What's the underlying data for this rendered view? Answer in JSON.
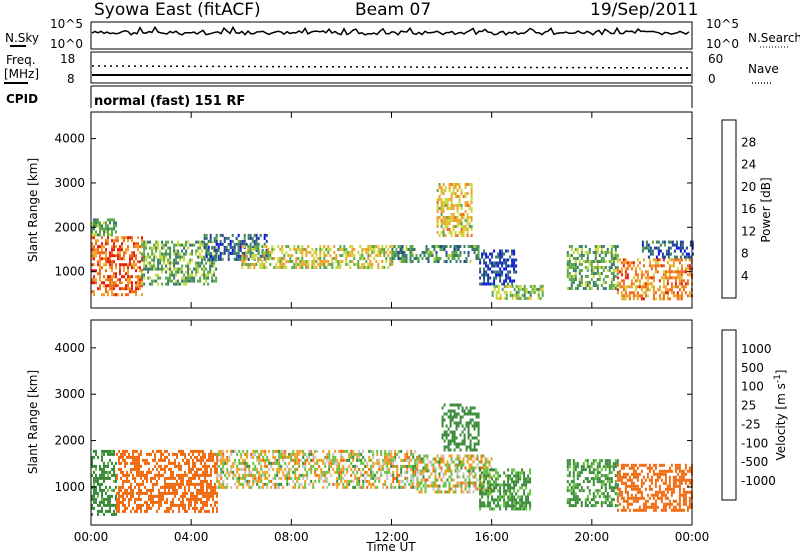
{
  "header": {
    "station": "Syowa East (fitACF)",
    "beam": "Beam 07",
    "date": "19/Sep/2011"
  },
  "noise_panel": {
    "left_label": "N.Sky",
    "right_label": "N.Search",
    "left_ticks": [
      "10^5",
      "10^0"
    ],
    "right_ticks": [
      "10^5",
      "10^0"
    ]
  },
  "freq_panel": {
    "left_label_line1": "Freq.",
    "left_label_line2": "[MHz]",
    "left_ticks": [
      "18",
      "8"
    ],
    "right_label": "Nave",
    "right_ticks": [
      "60",
      "0"
    ]
  },
  "cpid_panel": {
    "label": "CPID",
    "mode": "normal (fast) 151 RF"
  },
  "colors": {
    "power_scale": [
      "#0a14e6",
      "#22409a",
      "#3a7a6a",
      "#5aa84a",
      "#c8d83c",
      "#f2a028",
      "#f06a18",
      "#e62010"
    ],
    "velocity_scale": [
      "#2838a8",
      "#2a6a60",
      "#3a8a3a",
      "#68c040",
      "#c4c4bc",
      "#f0a020",
      "#f06a10",
      "#e83010",
      "#ff0808"
    ]
  },
  "chart_data": [
    {
      "type": "heatmap",
      "title": "",
      "xlabel": "",
      "ylabel": "Slant Range [km]",
      "x_ticks": [
        "00:00",
        "04:00",
        "08:00",
        "12:00",
        "16:00",
        "20:00",
        "00:00"
      ],
      "y_ticks": [
        "1000",
        "2000",
        "3000",
        "4000"
      ],
      "ylim": [
        180,
        4600
      ],
      "xlim_hours": [
        0,
        24
      ],
      "colorbar": {
        "label": "Power [dB]",
        "ticks": [
          "4",
          "8",
          "12",
          "16",
          "20",
          "24",
          "28"
        ],
        "range": [
          0,
          32
        ]
      },
      "regions": [
        {
          "t0": 0.0,
          "t1": 2.0,
          "r0": 500,
          "r1": 1800,
          "value": 26
        },
        {
          "t0": 0.0,
          "t1": 1.0,
          "r0": 1800,
          "r1": 2200,
          "value": 14
        },
        {
          "t0": 2.0,
          "t1": 5.0,
          "r0": 700,
          "r1": 1700,
          "value": 14
        },
        {
          "t0": 4.5,
          "t1": 7.0,
          "r0": 1300,
          "r1": 1850,
          "value": 8
        },
        {
          "t0": 6.0,
          "t1": 12.0,
          "r0": 1100,
          "r1": 1600,
          "value": 18
        },
        {
          "t0": 12.0,
          "t1": 15.5,
          "r0": 1200,
          "r1": 1600,
          "value": 12
        },
        {
          "t0": 13.8,
          "t1": 15.2,
          "r0": 1800,
          "r1": 3000,
          "value": 20
        },
        {
          "t0": 15.5,
          "t1": 17.0,
          "r0": 700,
          "r1": 1500,
          "value": 6
        },
        {
          "t0": 16.0,
          "t1": 18.0,
          "r0": 400,
          "r1": 700,
          "value": 16
        },
        {
          "t0": 19.0,
          "t1": 21.0,
          "r0": 600,
          "r1": 1600,
          "value": 14
        },
        {
          "t0": 21.0,
          "t1": 24.0,
          "r0": 400,
          "r1": 1300,
          "value": 24
        },
        {
          "t0": 22.0,
          "t1": 24.0,
          "r0": 1300,
          "r1": 1700,
          "value": 8
        }
      ]
    },
    {
      "type": "heatmap",
      "title": "",
      "xlabel": "Time UT",
      "ylabel": "Slant Range [km]",
      "x_ticks": [
        "00:00",
        "04:00",
        "08:00",
        "12:00",
        "16:00",
        "20:00",
        "00:00"
      ],
      "y_ticks": [
        "1000",
        "2000",
        "3000",
        "4000"
      ],
      "ylim": [
        180,
        4600
      ],
      "xlim_hours": [
        0,
        24
      ],
      "colorbar": {
        "label": "Velocity [m s^-1]",
        "ticks": [
          "1000",
          "500",
          "100",
          "25",
          "-25",
          "-100",
          "-500",
          "-1000"
        ]
      },
      "regions": [
        {
          "t0": 0.0,
          "t1": 1.0,
          "r0": 400,
          "r1": 1800,
          "value": 200
        },
        {
          "t0": 1.0,
          "t1": 5.0,
          "r0": 500,
          "r1": 1800,
          "value": -300
        },
        {
          "t0": 5.0,
          "t1": 13.0,
          "r0": 1000,
          "r1": 1800,
          "value": 0
        },
        {
          "t0": 13.0,
          "t1": 16.0,
          "r0": 900,
          "r1": 1700,
          "value": 0
        },
        {
          "t0": 14.0,
          "t1": 15.5,
          "r0": 1800,
          "r1": 2800,
          "value": 300
        },
        {
          "t0": 15.5,
          "t1": 17.5,
          "r0": 500,
          "r1": 1400,
          "value": 150
        },
        {
          "t0": 19.0,
          "t1": 21.0,
          "r0": 600,
          "r1": 1600,
          "value": 150
        },
        {
          "t0": 21.0,
          "t1": 24.0,
          "r0": 500,
          "r1": 1500,
          "value": -300
        }
      ]
    }
  ]
}
